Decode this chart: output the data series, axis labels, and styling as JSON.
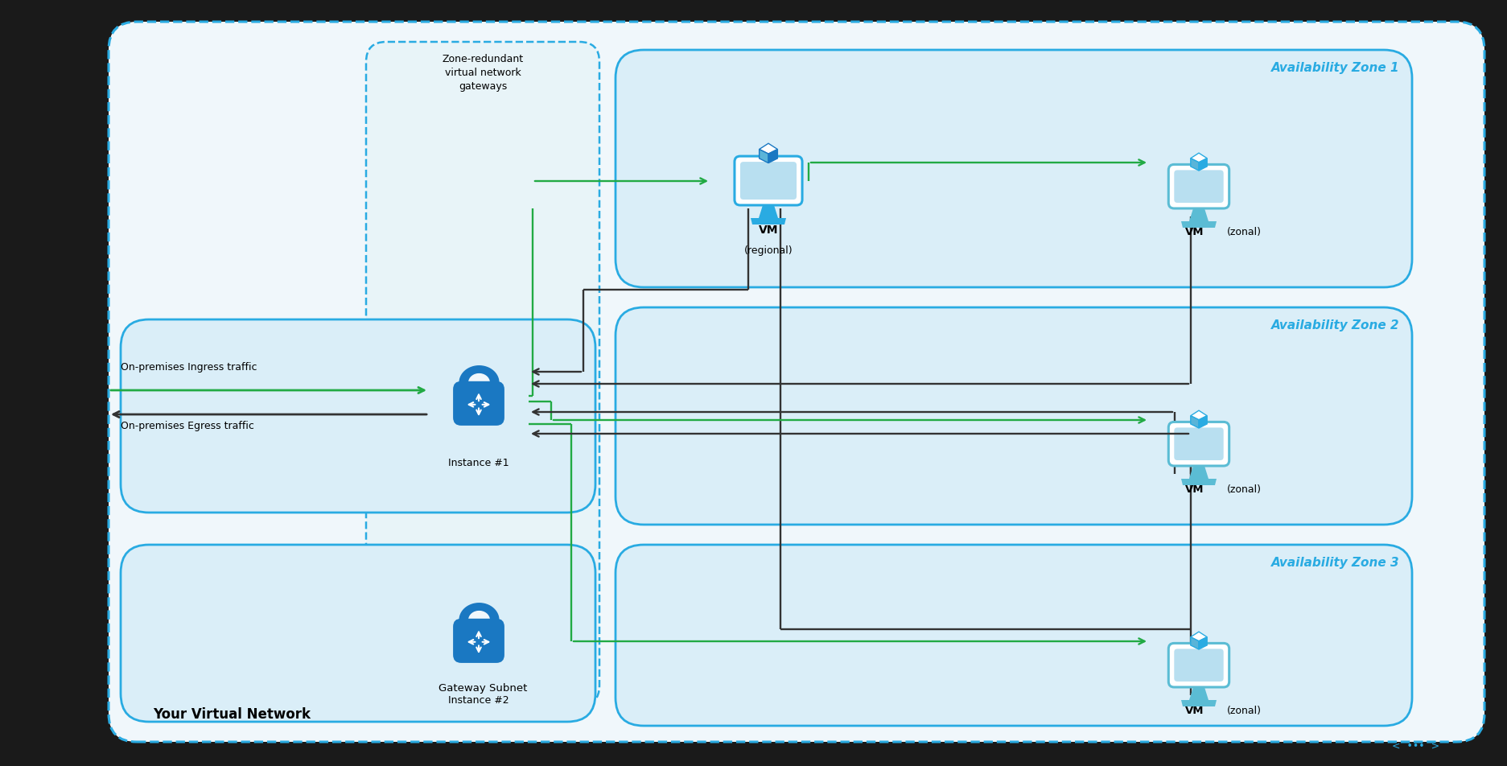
{
  "fig_width": 18.73,
  "fig_height": 9.52,
  "dpi": 100,
  "bg_color": "#1a1a1a",
  "main_bg": "#f0f7fb",
  "main_border": "#29abe2",
  "zone_bg": "#daeef8",
  "zone_border": "#29abe2",
  "subnet_bg": "#e8f4f8",
  "subnet_border": "#29abe2",
  "arrow_green": "#22aa44",
  "arrow_dark": "#333333",
  "lock_color": "#1a78c2",
  "vm_color": "#29abe2",
  "vm_dark": "#1a78c2",
  "zone_label_color": "#29abe2",
  "text_color": "#000000",
  "zone1_label": "Availability Zone 1",
  "zone2_label": "Availability Zone 2",
  "zone3_label": "Availability Zone 3",
  "ingress_text": "On-premises Ingress traffic",
  "egress_text": "On-premises Egress traffic",
  "vnet_label": "Your Virtual Network",
  "gateway_subnet_label": "Gateway Subnet",
  "zone_redundant_label": "Zone-redundant\nvirtual network\ngateways",
  "instance1_label": "Instance #1",
  "instance2_label": "Instance #2"
}
